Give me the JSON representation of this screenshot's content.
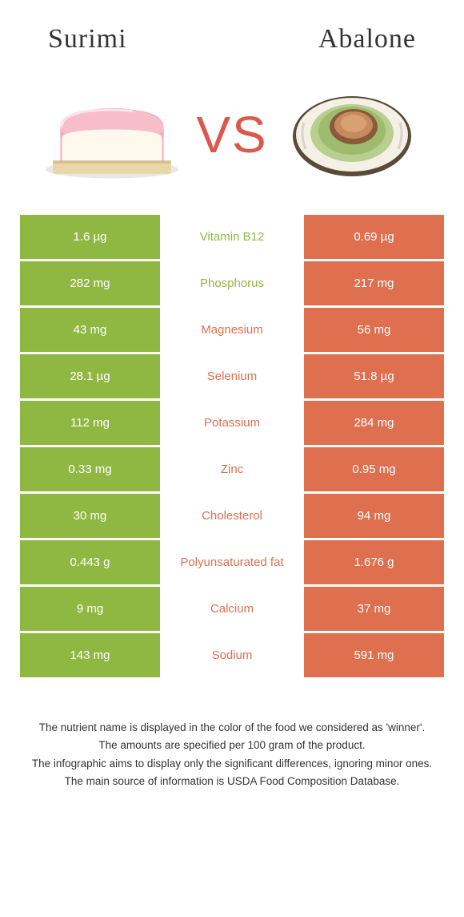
{
  "leftFood": "Surimi",
  "rightFood": "Abalone",
  "vsText": "VS",
  "colors": {
    "left": "#8fb843",
    "right": "#de6f4f",
    "leftText": "#8fb843",
    "rightText": "#de6f4f"
  },
  "rows": [
    {
      "left": "1.6 µg",
      "label": "Vitamin B12",
      "right": "0.69 µg",
      "winner": "left"
    },
    {
      "left": "282 mg",
      "label": "Phosphorus",
      "right": "217 mg",
      "winner": "left"
    },
    {
      "left": "43 mg",
      "label": "Magnesium",
      "right": "56 mg",
      "winner": "right"
    },
    {
      "left": "28.1 µg",
      "label": "Selenium",
      "right": "51.8 µg",
      "winner": "right"
    },
    {
      "left": "112 mg",
      "label": "Potassium",
      "right": "284 mg",
      "winner": "right"
    },
    {
      "left": "0.33 mg",
      "label": "Zinc",
      "right": "0.95 mg",
      "winner": "right"
    },
    {
      "left": "30 mg",
      "label": "Cholesterol",
      "right": "94 mg",
      "winner": "right"
    },
    {
      "left": "0.443 g",
      "label": "Polyunsaturated fat",
      "right": "1.676 g",
      "winner": "right"
    },
    {
      "left": "9 mg",
      "label": "Calcium",
      "right": "37 mg",
      "winner": "right"
    },
    {
      "left": "143 mg",
      "label": "Sodium",
      "right": "591 mg",
      "winner": "right"
    }
  ],
  "footnotes": [
    "The nutrient name is displayed in the color of the food we considered as 'winner'.",
    "The amounts are specified per 100 gram of the product.",
    "The infographic aims to display only the significant differences, ignoring minor ones.",
    "The main source of information is USDA Food Composition Database."
  ]
}
